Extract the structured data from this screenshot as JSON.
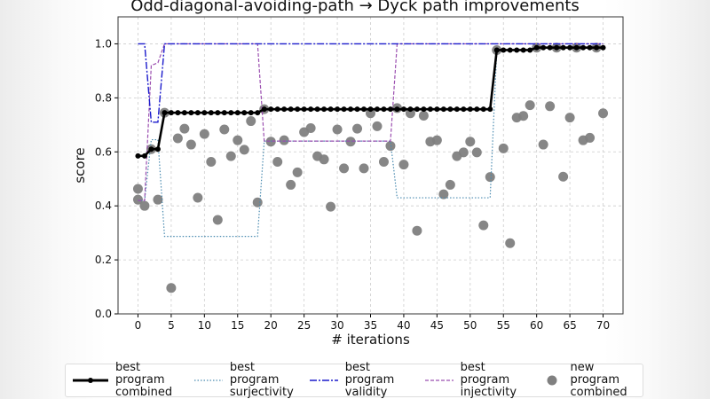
{
  "chart_data": {
    "type": "line",
    "title": "Odd-diagonal-avoiding-path → Dyck path improvements",
    "xlabel": "# iterations",
    "ylabel": "score",
    "xlim": [
      -3,
      73
    ],
    "ylim": [
      0,
      1.1
    ],
    "xticks": [
      0,
      5,
      10,
      15,
      20,
      25,
      30,
      35,
      40,
      45,
      50,
      55,
      60,
      65,
      70
    ],
    "yticks": [
      0.0,
      0.2,
      0.4,
      0.6,
      0.8,
      1.0
    ],
    "ytick_labels": [
      "0.0",
      "0.2",
      "0.4",
      "0.6",
      "0.8",
      "1.0"
    ],
    "grid": true,
    "legend_placement": "bottom",
    "series": [
      {
        "name": "best program\ncombined",
        "style": "solid-marker",
        "color": "#000000",
        "values": [
          0.585,
          0.585,
          0.61,
          0.61,
          0.745,
          0.745,
          0.745,
          0.745,
          0.745,
          0.745,
          0.745,
          0.745,
          0.745,
          0.745,
          0.745,
          0.745,
          0.745,
          0.745,
          0.745,
          0.758,
          0.758,
          0.758,
          0.758,
          0.758,
          0.758,
          0.758,
          0.758,
          0.758,
          0.758,
          0.758,
          0.758,
          0.758,
          0.758,
          0.758,
          0.758,
          0.758,
          0.758,
          0.758,
          0.758,
          0.758,
          0.758,
          0.758,
          0.758,
          0.758,
          0.758,
          0.758,
          0.758,
          0.758,
          0.758,
          0.758,
          0.758,
          0.758,
          0.758,
          0.758,
          0.977,
          0.977,
          0.977,
          0.977,
          0.977,
          0.977,
          0.986,
          0.986,
          0.986,
          0.986,
          0.986,
          0.986,
          0.986,
          0.986,
          0.986,
          0.986,
          0.986
        ]
      },
      {
        "name": "best program\nsurjectivity",
        "style": "dotted",
        "color": "#4a8bb0",
        "values": [
          0.42,
          0.42,
          0.645,
          0.645,
          0.287,
          0.287,
          0.287,
          0.287,
          0.287,
          0.287,
          0.287,
          0.287,
          0.287,
          0.287,
          0.287,
          0.287,
          0.287,
          0.287,
          0.287,
          0.64,
          0.64,
          0.64,
          0.64,
          0.64,
          0.64,
          0.64,
          0.64,
          0.64,
          0.64,
          0.64,
          0.64,
          0.64,
          0.64,
          0.64,
          0.64,
          0.64,
          0.64,
          0.64,
          0.64,
          0.43,
          0.43,
          0.43,
          0.43,
          0.43,
          0.43,
          0.43,
          0.43,
          0.43,
          0.43,
          0.43,
          0.43,
          0.43,
          0.43,
          0.43,
          0.977,
          0.977,
          0.977,
          0.977,
          0.977,
          0.977,
          0.986,
          0.986,
          0.986,
          0.986,
          0.986,
          0.986,
          0.986,
          0.986,
          0.986,
          0.986,
          0.986
        ]
      },
      {
        "name": "best program\nvalidity",
        "style": "dashdot",
        "color": "#1a1acc",
        "values": [
          1,
          1,
          0.71,
          0.71,
          1,
          1,
          1,
          1,
          1,
          1,
          1,
          1,
          1,
          1,
          1,
          1,
          1,
          1,
          1,
          1,
          1,
          1,
          1,
          1,
          1,
          1,
          1,
          1,
          1,
          1,
          1,
          1,
          1,
          1,
          1,
          1,
          1,
          1,
          1,
          1,
          1,
          1,
          1,
          1,
          1,
          1,
          1,
          1,
          1,
          1,
          1,
          1,
          1,
          1,
          1,
          1,
          1,
          1,
          1,
          1,
          1,
          1,
          1,
          1,
          1,
          1,
          1,
          1,
          1,
          1,
          1
        ]
      },
      {
        "name": "best program\ninjectivity",
        "style": "dashed",
        "color": "#9b4fb0",
        "values": [
          0.42,
          0.42,
          0.92,
          0.93,
          1,
          1,
          1,
          1,
          1,
          1,
          1,
          1,
          1,
          1,
          1,
          1,
          1,
          1,
          1,
          0.64,
          0.64,
          0.64,
          0.64,
          0.64,
          0.64,
          0.64,
          0.64,
          0.64,
          0.64,
          0.64,
          0.64,
          0.64,
          0.64,
          0.64,
          0.64,
          0.64,
          0.64,
          0.64,
          0.64,
          1,
          1,
          1,
          1,
          1,
          1,
          1,
          1,
          1,
          1,
          1,
          1,
          1,
          1,
          1,
          1,
          1,
          1,
          1,
          1,
          1,
          1,
          1,
          1,
          1,
          1,
          1,
          1,
          1,
          1,
          1,
          1
        ]
      }
    ],
    "scatter": {
      "name": "new program\ncombined",
      "color": "#808080",
      "points": [
        [
          0,
          0.463
        ],
        [
          0,
          0.423
        ],
        [
          1,
          0.4
        ],
        [
          2,
          0.61
        ],
        [
          3,
          0.423
        ],
        [
          4,
          0.745
        ],
        [
          5,
          0.096
        ],
        [
          6,
          0.65
        ],
        [
          7,
          0.686
        ],
        [
          8,
          0.627
        ],
        [
          9,
          0.43
        ],
        [
          10,
          0.666
        ],
        [
          11,
          0.563
        ],
        [
          12,
          0.348
        ],
        [
          13,
          0.683
        ],
        [
          14,
          0.584
        ],
        [
          15,
          0.643
        ],
        [
          16,
          0.608
        ],
        [
          17,
          0.714
        ],
        [
          18,
          0.413
        ],
        [
          19,
          0.758
        ],
        [
          20,
          0.638
        ],
        [
          21,
          0.563
        ],
        [
          22,
          0.643
        ],
        [
          23,
          0.478
        ],
        [
          24,
          0.524
        ],
        [
          25,
          0.673
        ],
        [
          26,
          0.688
        ],
        [
          27,
          0.584
        ],
        [
          28,
          0.572
        ],
        [
          29,
          0.397
        ],
        [
          30,
          0.683
        ],
        [
          31,
          0.539
        ],
        [
          32,
          0.638
        ],
        [
          33,
          0.686
        ],
        [
          34,
          0.539
        ],
        [
          35,
          0.743
        ],
        [
          36,
          0.695
        ],
        [
          37,
          0.563
        ],
        [
          38,
          0.622
        ],
        [
          39,
          0.762
        ],
        [
          40,
          0.553
        ],
        [
          41,
          0.743
        ],
        [
          42,
          0.308
        ],
        [
          43,
          0.734
        ],
        [
          44,
          0.638
        ],
        [
          45,
          0.643
        ],
        [
          46,
          0.443
        ],
        [
          47,
          0.478
        ],
        [
          48,
          0.584
        ],
        [
          49,
          0.598
        ],
        [
          50,
          0.638
        ],
        [
          51,
          0.598
        ],
        [
          52,
          0.328
        ],
        [
          53,
          0.507
        ],
        [
          54,
          0.977
        ],
        [
          55,
          0.613
        ],
        [
          56,
          0.262
        ],
        [
          57,
          0.727
        ],
        [
          58,
          0.733
        ],
        [
          59,
          0.773
        ],
        [
          60,
          0.986
        ],
        [
          61,
          0.627
        ],
        [
          62,
          0.769
        ],
        [
          63,
          0.986
        ],
        [
          64,
          0.508
        ],
        [
          65,
          0.727
        ],
        [
          66,
          0.986
        ],
        [
          67,
          0.643
        ],
        [
          68,
          0.652
        ],
        [
          69,
          0.986
        ],
        [
          70,
          0.743
        ]
      ]
    }
  }
}
